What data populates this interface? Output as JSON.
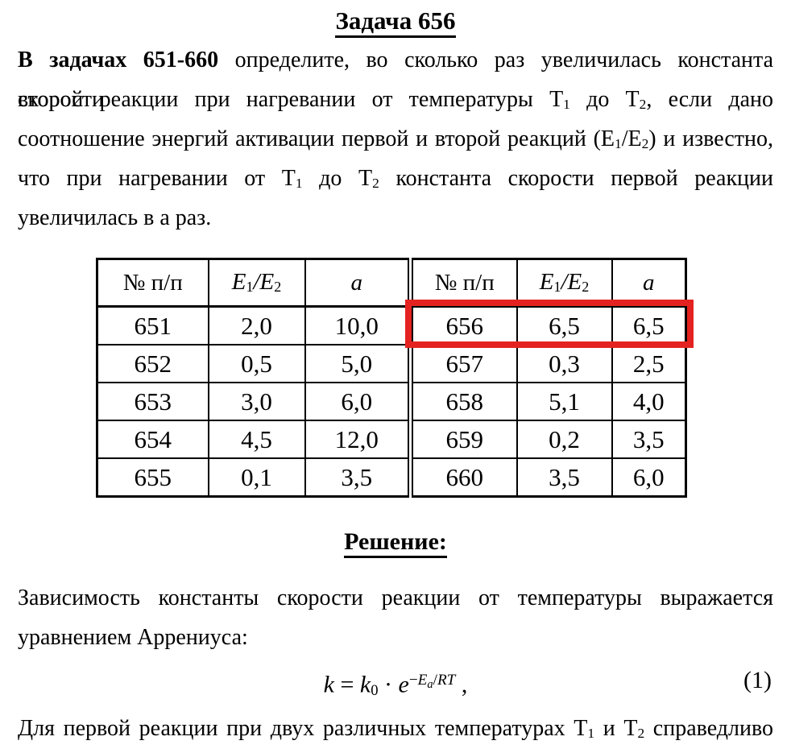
{
  "title": {
    "text": "Задача 656"
  },
  "problem": {
    "lines": [
      {
        "segments": [
          {
            "t": "В задачах 651-660",
            "b": true
          },
          {
            "t": " определите, во сколько раз увеличилась константа скорости"
          }
        ]
      },
      {
        "segments": [
          {
            "t": "второй реакции при нагревании от температуры Т"
          },
          {
            "t": "1",
            "v": "sub"
          },
          {
            "t": " до Т"
          },
          {
            "t": "2",
            "v": "sub"
          },
          {
            "t": ", если дано"
          }
        ]
      },
      {
        "segments": [
          {
            "t": "соотношение энергий активации первой и второй реакций (Е"
          },
          {
            "t": "1",
            "v": "sub"
          },
          {
            "t": "/Е"
          },
          {
            "t": "2",
            "v": "sub"
          },
          {
            "t": ") и известно,"
          }
        ]
      },
      {
        "segments": [
          {
            "t": "что при нагревании от Т"
          },
          {
            "t": "1",
            "v": "sub"
          },
          {
            "t": " до Т"
          },
          {
            "t": "2",
            "v": "sub"
          },
          {
            "t": " константа скорости первой реакции"
          }
        ]
      },
      {
        "segments": [
          {
            "t": "увеличилась в а раз."
          }
        ]
      }
    ]
  },
  "table": {
    "headers": [
      {
        "segments": [
          {
            "t": "№ п/п"
          }
        ]
      },
      {
        "segments": [
          {
            "t": "E",
            "i": true
          },
          {
            "t": "1",
            "v": "sub"
          },
          {
            "t": "/",
            "i": true
          },
          {
            "t": "E",
            "i": true
          },
          {
            "t": "2",
            "v": "sub"
          }
        ]
      },
      {
        "segments": [
          {
            "t": "a",
            "i": true
          }
        ]
      },
      {
        "segments": [
          {
            "t": "№ п/п"
          }
        ]
      },
      {
        "segments": [
          {
            "t": "E",
            "i": true
          },
          {
            "t": "1",
            "v": "sub"
          },
          {
            "t": "/",
            "i": true
          },
          {
            "t": "E",
            "i": true
          },
          {
            "t": "2",
            "v": "sub"
          }
        ]
      },
      {
        "segments": [
          {
            "t": "a",
            "i": true
          }
        ]
      }
    ],
    "rows": [
      [
        "651",
        "2,0",
        "10,0",
        "656",
        "6,5",
        "6,5"
      ],
      [
        "652",
        "0,5",
        "5,0",
        "657",
        "0,3",
        "2,5"
      ],
      [
        "653",
        "3,0",
        "6,0",
        "658",
        "5,1",
        "4,0"
      ],
      [
        "654",
        "4,5",
        "12,0",
        "659",
        "0,2",
        "3,5"
      ],
      [
        "655",
        "0,1",
        "3,5",
        "660",
        "3,5",
        "6,0"
      ]
    ]
  },
  "highlight": {
    "row": "656",
    "color": "#e42320"
  },
  "solution": {
    "heading": "Решение:",
    "lines": [
      {
        "segments": [
          {
            "t": "Зависимость константы скорости реакции от температуры выражается"
          }
        ]
      },
      {
        "segments": [
          {
            "t": "уравнением Аррениуса:"
          }
        ]
      }
    ],
    "equation": {
      "segments": [
        {
          "t": "k",
          "i": true
        },
        {
          "t": " = "
        },
        {
          "t": "k",
          "i": true
        },
        {
          "t": "0",
          "v": "sub"
        },
        {
          "t": " · "
        },
        {
          "t": "e",
          "i": true
        },
        {
          "t": "−",
          "v": "sup"
        },
        {
          "t": "E",
          "i": true,
          "v": "sup"
        },
        {
          "t": "a",
          "i": true,
          "v": "supsub"
        },
        {
          "t": "/",
          "v": "sup"
        },
        {
          "t": "RT",
          "i": true,
          "v": "sup"
        },
        {
          "t": " ,"
        }
      ],
      "number": "(1)"
    },
    "continuation": {
      "segments": [
        {
          "t": "Для первой реакции при двух различных температурах Т"
        },
        {
          "t": "1",
          "v": "sub"
        },
        {
          "t": " и Т"
        },
        {
          "t": "2",
          "v": "sub"
        },
        {
          "t": " справедливо"
        }
      ]
    }
  }
}
